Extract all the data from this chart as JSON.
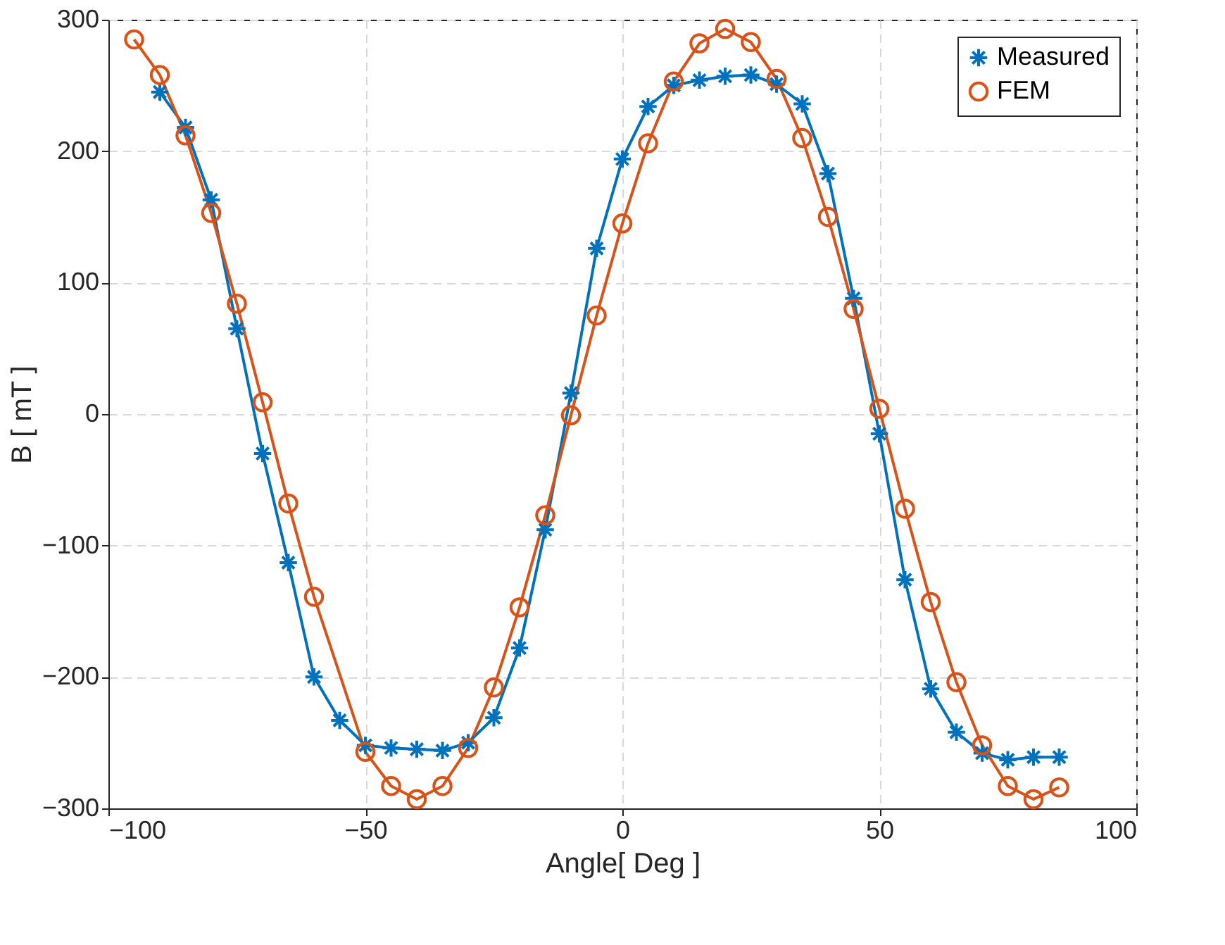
{
  "chart_data": {
    "type": "line",
    "xlabel": "Angle[ Deg ]",
    "ylabel": "B [ mT ]",
    "xlim": [
      -100,
      100
    ],
    "xticks": [
      -100,
      -50,
      0,
      50,
      100
    ],
    "ylim": [
      -300,
      300
    ],
    "yticks": [
      -300,
      -200,
      -100,
      0,
      100,
      200,
      300
    ],
    "grid": true,
    "legend": "top right",
    "line_style": "solid",
    "series": [
      {
        "name": "Measured",
        "color": "#0072bd",
        "marker": "cross",
        "x": [
          -90,
          -85,
          -80,
          -75,
          -70,
          -65,
          -60,
          -55,
          -50,
          -45,
          -40,
          -35,
          -30,
          -25,
          -20,
          -15,
          -10,
          -5,
          0,
          5,
          10,
          15,
          20,
          25,
          30,
          35,
          40,
          45,
          50,
          55,
          60,
          65,
          70,
          75,
          80,
          85
        ],
        "values": [
          245,
          218,
          163,
          65,
          -30,
          -113,
          -200,
          -233,
          -252,
          -254,
          -255,
          -256,
          -250,
          -231,
          -178,
          -88,
          16,
          126,
          194,
          234,
          250,
          254,
          257,
          258,
          251,
          236,
          183,
          88,
          -15,
          -126,
          -209,
          -242,
          -258,
          -263,
          -261,
          -261
        ]
      },
      {
        "name": "FEM",
        "color": "#d95319",
        "marker": "circle",
        "x": [
          -95,
          -90,
          -85,
          -80,
          -75,
          -70,
          -65,
          -60,
          -50,
          -45,
          -40,
          -35,
          -30,
          -25,
          -20,
          -15,
          -10,
          -5,
          0,
          5,
          10,
          15,
          20,
          25,
          30,
          35,
          40,
          45,
          50,
          55,
          60,
          65,
          70,
          75,
          80,
          85
        ],
        "values": [
          285,
          258,
          212,
          153,
          84,
          9,
          -68,
          -139,
          -257,
          -283,
          -293,
          -283,
          -254,
          -208,
          -147,
          -77,
          -1,
          75,
          145,
          206,
          253,
          282,
          293,
          283,
          255,
          210,
          150,
          80,
          4,
          -72,
          -143,
          -204,
          -252,
          -283,
          -293,
          -284
        ]
      }
    ]
  }
}
